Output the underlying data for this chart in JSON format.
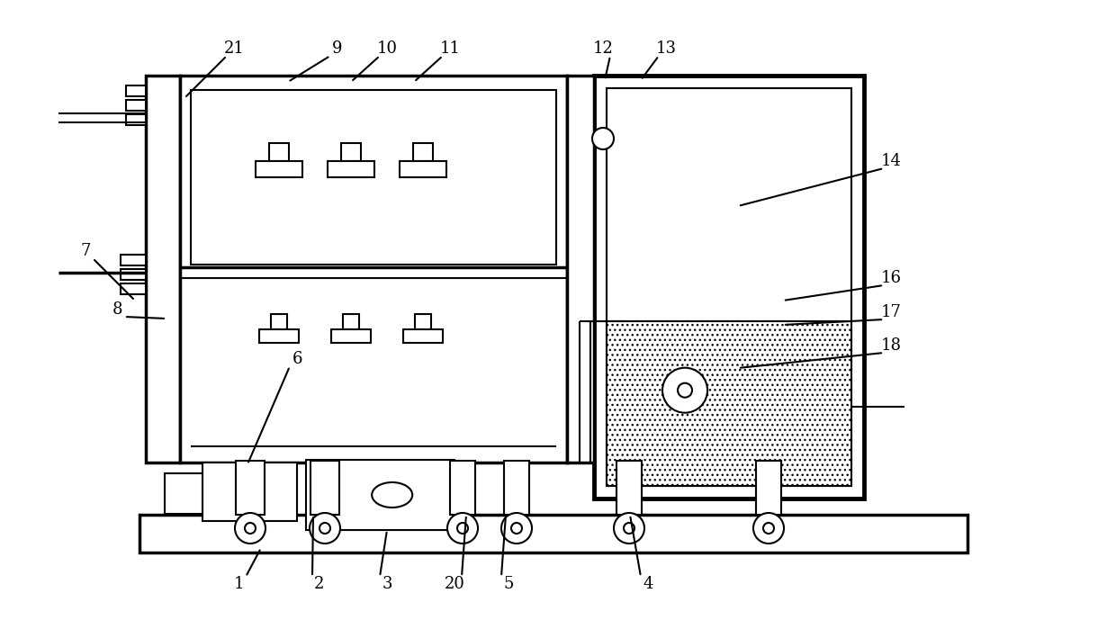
{
  "bg_color": "#ffffff",
  "line_color": "#000000",
  "lw": 1.5,
  "lw2": 2.5,
  "lw3": 3.5,
  "fig_w": 12.4,
  "fig_h": 7.09,
  "dpi": 100
}
